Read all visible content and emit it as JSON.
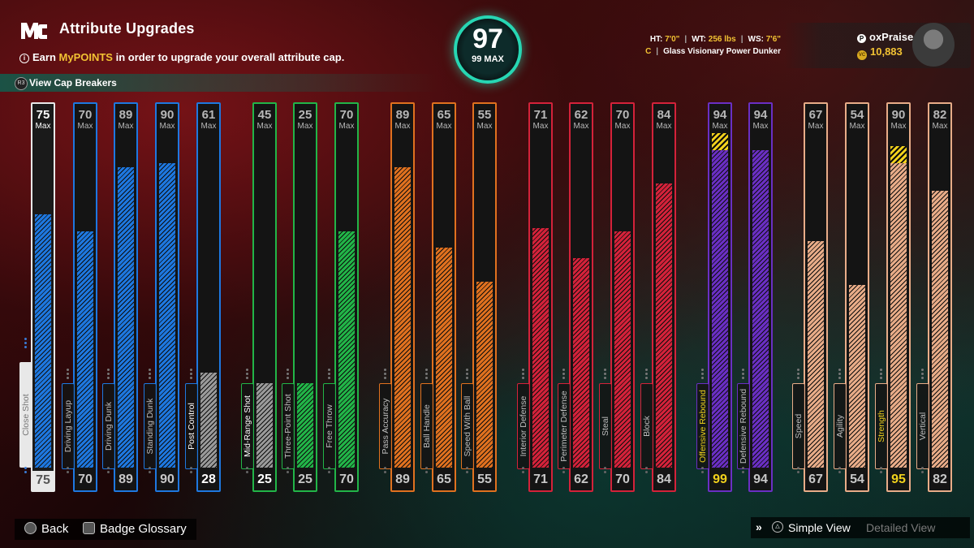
{
  "header": {
    "logo": "MC",
    "title": "Attribute Upgrades",
    "earn_prefix": "Earn ",
    "earn_highlight": "MyPOINTS",
    "earn_suffix": " in order to upgrade your overall attribute cap.",
    "cap_breakers_btn": "R3",
    "cap_breakers": "View Cap Breakers"
  },
  "overall": {
    "value": "97",
    "max_label": "99 MAX"
  },
  "player": {
    "ht_label": "HT:",
    "ht": "7'0\"",
    "wt_label": "WT:",
    "wt": "256 lbs",
    "ws_label": "WS:",
    "ws": "7'6\"",
    "position": "C",
    "archetype": "Glass Visionary Power Dunker",
    "name": "oxPraise",
    "vc": "10,883"
  },
  "max_label": "Max",
  "attributes": [
    {
      "name": "Close Shot",
      "max": 75,
      "current": 75,
      "group": "inside",
      "selected": true
    },
    {
      "name": "Driving Layup",
      "max": 70,
      "current": 70,
      "group": "inside"
    },
    {
      "name": "Driving Dunk",
      "max": 89,
      "current": 89,
      "group": "inside"
    },
    {
      "name": "Standing Dunk",
      "max": 90,
      "current": 90,
      "group": "inside"
    },
    {
      "name": "Post Control",
      "max": 61,
      "current": 28,
      "group": "inside",
      "highlight": true
    },
    {
      "name": "Mid-Range Shot",
      "max": 45,
      "current": 25,
      "group": "outside",
      "highlight": true
    },
    {
      "name": "Three-Point Shot",
      "max": 25,
      "current": 25,
      "group": "outside"
    },
    {
      "name": "Free Throw",
      "max": 70,
      "current": 70,
      "group": "outside"
    },
    {
      "name": "Pass Accuracy",
      "max": 89,
      "current": 89,
      "group": "playmaking"
    },
    {
      "name": "Ball Handle",
      "max": 65,
      "current": 65,
      "group": "playmaking"
    },
    {
      "name": "Speed With Ball",
      "max": 55,
      "current": 55,
      "group": "playmaking"
    },
    {
      "name": "Interior Defense",
      "max": 71,
      "current": 71,
      "group": "defense"
    },
    {
      "name": "Perimeter Defense",
      "max": 62,
      "current": 62,
      "group": "defense"
    },
    {
      "name": "Steal",
      "max": 70,
      "current": 70,
      "group": "defense"
    },
    {
      "name": "Block",
      "max": 84,
      "current": 84,
      "group": "defense"
    },
    {
      "name": "Offensive Rebound",
      "max": 94,
      "current": 99,
      "group": "rebounding",
      "gold": true
    },
    {
      "name": "Defensive Rebound",
      "max": 94,
      "current": 94,
      "group": "rebounding"
    },
    {
      "name": "Speed",
      "max": 67,
      "current": 67,
      "group": "physical"
    },
    {
      "name": "Agility",
      "max": 54,
      "current": 54,
      "group": "physical"
    },
    {
      "name": "Strength",
      "max": 90,
      "current": 95,
      "group": "physical",
      "gold": true
    },
    {
      "name": "Vertical",
      "max": 82,
      "current": 82,
      "group": "physical"
    }
  ],
  "colors": {
    "inside": "#1e78e0",
    "outside": "#22b548",
    "playmaking": "#e0711f",
    "defense": "#d4223a",
    "rebounding": "#6a2fc4",
    "physical": "#e8ac88",
    "gold": "#f2d21c",
    "highlight": "#9a9a9a"
  },
  "footer": {
    "back": "Back",
    "badge_glossary": "Badge Glossary",
    "simple_view": "Simple View",
    "detailed_view": "Detailed View"
  }
}
